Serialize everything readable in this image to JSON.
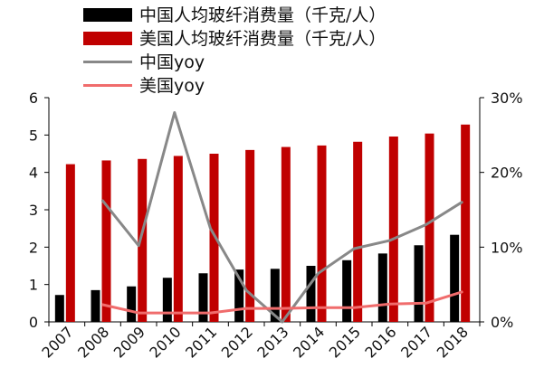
{
  "chart_data": {
    "type": "bar",
    "categories": [
      "2007",
      "2008",
      "2009",
      "2010",
      "2011",
      "2012",
      "2013",
      "2014",
      "2015",
      "2016",
      "2017",
      "2018"
    ],
    "series": [
      {
        "name": "中国人均玻纤消费量（千克/人）",
        "type": "bar",
        "axis": "left",
        "color": "#000000",
        "values": [
          0.72,
          0.85,
          0.95,
          1.18,
          1.3,
          1.4,
          1.42,
          1.5,
          1.65,
          1.83,
          2.05,
          2.33
        ]
      },
      {
        "name": "美国人均玻纤消费量（千克/人）",
        "type": "bar",
        "axis": "left",
        "color": "#c00000",
        "values": [
          4.22,
          4.32,
          4.36,
          4.44,
          4.5,
          4.6,
          4.68,
          4.72,
          4.82,
          4.96,
          5.04,
          5.28
        ]
      },
      {
        "name": "中国yoy",
        "type": "line",
        "axis": "right",
        "color": "#888888",
        "values": [
          null,
          16.2,
          10.2,
          28.0,
          12.5,
          4.2,
          0.0,
          6.5,
          9.8,
          10.9,
          13.0,
          16.0
        ]
      },
      {
        "name": "美国yoy",
        "type": "line",
        "axis": "right",
        "color": "#f06c6c",
        "values": [
          null,
          2.3,
          1.2,
          1.2,
          1.2,
          1.8,
          1.8,
          1.9,
          1.9,
          2.4,
          2.5,
          4.0
        ]
      }
    ],
    "y_left": {
      "ylim": [
        0,
        6
      ],
      "ticks": [
        "0",
        "1",
        "2",
        "3",
        "4",
        "5",
        "6"
      ]
    },
    "y_right": {
      "ylim": [
        0,
        30
      ],
      "ticks": [
        "0%",
        "10%",
        "20%",
        "30%"
      ]
    },
    "grid": false,
    "legend_position": "top-left",
    "title": "",
    "xlabel": "",
    "ylabel": ""
  }
}
